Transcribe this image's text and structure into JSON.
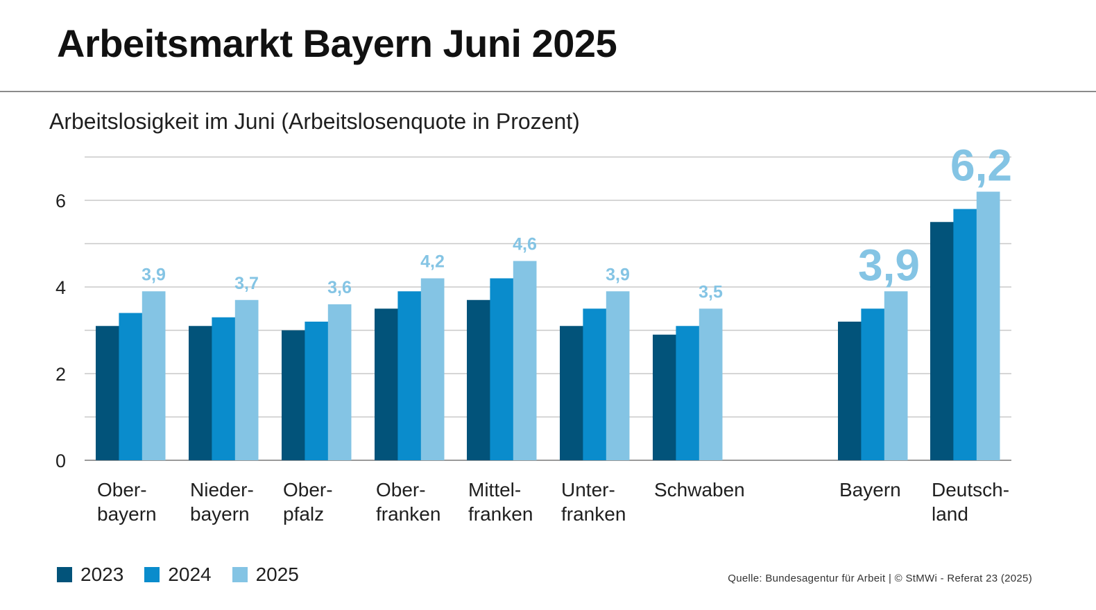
{
  "header": {
    "title": "Arbeitsmarkt Bayern Juni 2025"
  },
  "chart_data": {
    "type": "bar",
    "title": "Arbeitslosigkeit im Juni (Arbeitslosenquote in Prozent)",
    "categories": [
      [
        "Ober-",
        "bayern"
      ],
      [
        "Nieder-",
        "bayern"
      ],
      [
        "Ober-",
        "pfalz"
      ],
      [
        "Ober-",
        "franken"
      ],
      [
        "Mittel-",
        "franken"
      ],
      [
        "Unter-",
        "franken"
      ],
      [
        "Schwaben"
      ],
      [
        "Bayern"
      ],
      [
        "Deutsch-",
        "land"
      ]
    ],
    "series": [
      {
        "name": "2023",
        "color": "#02537a",
        "values": [
          3.1,
          3.1,
          3.0,
          3.5,
          3.7,
          3.1,
          2.9,
          3.2,
          5.5
        ]
      },
      {
        "name": "2024",
        "color": "#0a8ccc",
        "values": [
          3.4,
          3.3,
          3.2,
          3.9,
          4.2,
          3.5,
          3.1,
          3.5,
          5.8
        ]
      },
      {
        "name": "2025",
        "color": "#84c4e4",
        "values": [
          3.9,
          3.7,
          3.6,
          4.2,
          4.6,
          3.9,
          3.5,
          3.9,
          6.2
        ]
      }
    ],
    "data_labels": [
      "3,9",
      "3,7",
      "3,6",
      "4,2",
      "4,6",
      "3,9",
      "3,5",
      "3,9",
      "6,2"
    ],
    "emphasized_labels": [
      false,
      false,
      false,
      false,
      false,
      false,
      false,
      true,
      true
    ],
    "y_ticks": [
      "0",
      "2",
      "4",
      "6"
    ],
    "ylim": [
      0,
      7
    ],
    "grid": true,
    "legend_position": "bottom-left",
    "label_color": "#84c4e4"
  },
  "legend": {
    "items": [
      {
        "label": "2023",
        "color": "#02537a"
      },
      {
        "label": "2024",
        "color": "#0a8ccc"
      },
      {
        "label": "2025",
        "color": "#84c4e4"
      }
    ]
  },
  "footer": {
    "source": "Quelle: Bundesagentur für Arbeit | © StMWi - Referat 23 (2025)"
  }
}
